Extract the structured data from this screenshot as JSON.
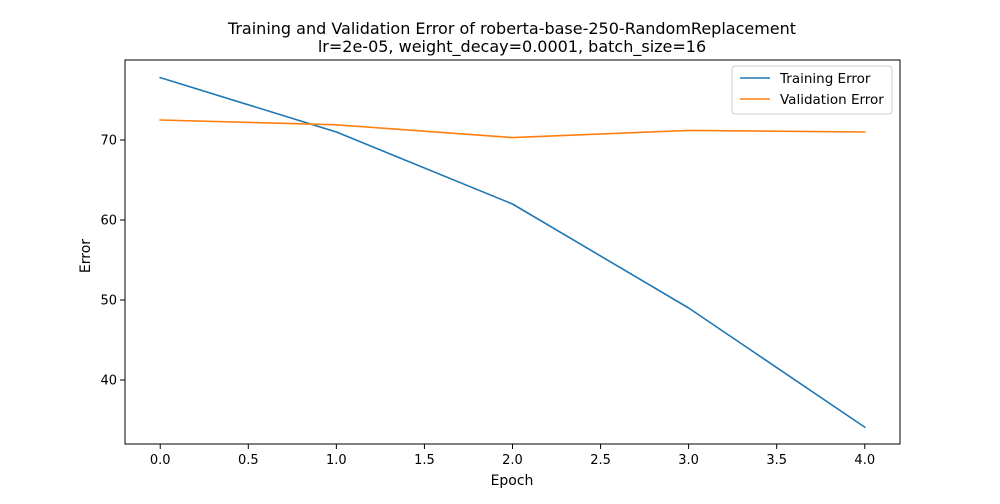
{
  "chart_data": {
    "type": "line",
    "title": "Training and Validation Error of roberta-base-250-RandomReplacement",
    "subtitle": "lr=2e-05, weight_decay=0.0001, batch_size=16",
    "xlabel": "Epoch",
    "ylabel": "Error",
    "xlim": [
      -0.2,
      4.2
    ],
    "ylim": [
      32.0,
      80.0
    ],
    "x_ticks": [
      0.0,
      0.5,
      1.0,
      1.5,
      2.0,
      2.5,
      3.0,
      3.5,
      4.0
    ],
    "x_tick_labels": [
      "0.0",
      "0.5",
      "1.0",
      "1.5",
      "2.0",
      "2.5",
      "3.0",
      "3.5",
      "4.0"
    ],
    "y_ticks": [
      40,
      50,
      60,
      70
    ],
    "y_tick_labels": [
      "40",
      "50",
      "60",
      "70"
    ],
    "grid": false,
    "legend_position": "upper right",
    "x": [
      0,
      1,
      2,
      3,
      4
    ],
    "series": [
      {
        "name": "Training Error",
        "color": "#1f77b4",
        "values": [
          77.8,
          71.0,
          62.0,
          49.0,
          34.1
        ]
      },
      {
        "name": "Validation Error",
        "color": "#ff7f0e",
        "values": [
          72.5,
          71.9,
          70.3,
          71.2,
          71.0
        ]
      }
    ]
  }
}
